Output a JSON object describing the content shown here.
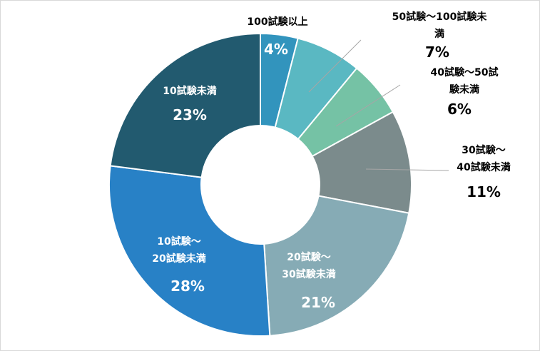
{
  "chart_data": {
    "type": "donut",
    "categories": [
      "100試験以上",
      "50試験～100試験未満",
      "40試験～50試験未満",
      "30試験～\n40試験未満",
      "20試験～\n30試験未満",
      "10試験～\n20試験未満",
      "10試験未満"
    ],
    "values": [
      4,
      7,
      6,
      11,
      21,
      28,
      23
    ],
    "value_labels": [
      "4%",
      "7%",
      "6%",
      "11%",
      "21%",
      "28%",
      "23%"
    ],
    "colors": [
      "#3294bd",
      "#5ab8c2",
      "#75c2a5",
      "#7b8b8c",
      "#86abb5",
      "#2881c6",
      "#225a6f"
    ]
  }
}
